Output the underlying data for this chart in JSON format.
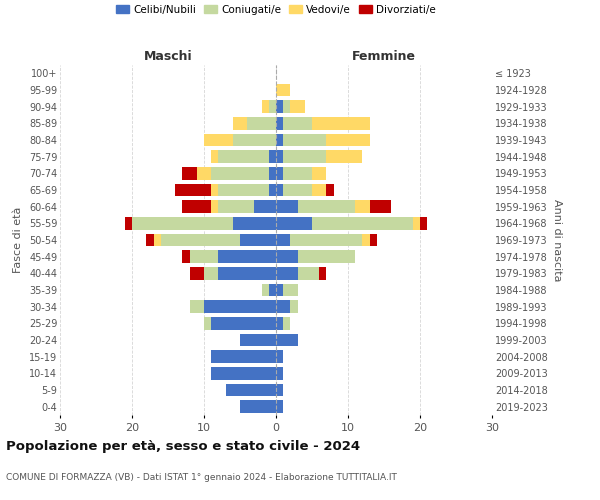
{
  "age_groups": [
    "0-4",
    "5-9",
    "10-14",
    "15-19",
    "20-24",
    "25-29",
    "30-34",
    "35-39",
    "40-44",
    "45-49",
    "50-54",
    "55-59",
    "60-64",
    "65-69",
    "70-74",
    "75-79",
    "80-84",
    "85-89",
    "90-94",
    "95-99",
    "100+"
  ],
  "birth_years": [
    "2019-2023",
    "2014-2018",
    "2009-2013",
    "2004-2008",
    "1999-2003",
    "1994-1998",
    "1989-1993",
    "1984-1988",
    "1979-1983",
    "1974-1978",
    "1969-1973",
    "1964-1968",
    "1959-1963",
    "1954-1958",
    "1949-1953",
    "1944-1948",
    "1939-1943",
    "1934-1938",
    "1929-1933",
    "1924-1928",
    "≤ 1923"
  ],
  "maschi": {
    "celibi": [
      5,
      7,
      9,
      9,
      5,
      9,
      10,
      1,
      8,
      8,
      5,
      6,
      3,
      1,
      1,
      1,
      0,
      0,
      0,
      0,
      0
    ],
    "coniugati": [
      0,
      0,
      0,
      0,
      0,
      1,
      2,
      1,
      2,
      4,
      11,
      14,
      5,
      7,
      8,
      7,
      6,
      4,
      1,
      0,
      0
    ],
    "vedovi": [
      0,
      0,
      0,
      0,
      0,
      0,
      0,
      0,
      0,
      0,
      1,
      0,
      1,
      1,
      2,
      1,
      4,
      2,
      1,
      0,
      0
    ],
    "divorziati": [
      0,
      0,
      0,
      0,
      0,
      0,
      0,
      0,
      2,
      1,
      1,
      1,
      4,
      5,
      2,
      0,
      0,
      0,
      0,
      0,
      0
    ]
  },
  "femmine": {
    "nubili": [
      1,
      1,
      1,
      1,
      3,
      1,
      2,
      1,
      3,
      3,
      2,
      5,
      3,
      1,
      1,
      1,
      1,
      1,
      1,
      0,
      0
    ],
    "coniugate": [
      0,
      0,
      0,
      0,
      0,
      1,
      1,
      2,
      3,
      8,
      10,
      14,
      8,
      4,
      4,
      6,
      6,
      4,
      1,
      0,
      0
    ],
    "vedove": [
      0,
      0,
      0,
      0,
      0,
      0,
      0,
      0,
      0,
      0,
      1,
      1,
      2,
      2,
      2,
      5,
      6,
      8,
      2,
      2,
      0
    ],
    "divorziate": [
      0,
      0,
      0,
      0,
      0,
      0,
      0,
      0,
      1,
      0,
      1,
      1,
      3,
      1,
      0,
      0,
      0,
      0,
      0,
      0,
      0
    ]
  },
  "colors": {
    "celibi": "#4472C4",
    "coniugati": "#C5D9A0",
    "vedovi": "#FFD966",
    "divorziati": "#C00000"
  },
  "xlim": 30,
  "title_main": "Popolazione per età, sesso e stato civile - 2024",
  "title_sub": "COMUNE DI FORMAZZA (VB) - Dati ISTAT 1° gennaio 2024 - Elaborazione TUTTITALIA.IT",
  "label_maschi": "Maschi",
  "label_femmine": "Femmine",
  "ylabel_left": "Fasce di età",
  "ylabel_right": "Anni di nascita",
  "legend_labels": [
    "Celibi/Nubili",
    "Coniugati/e",
    "Vedovi/e",
    "Divorziati/e"
  ]
}
